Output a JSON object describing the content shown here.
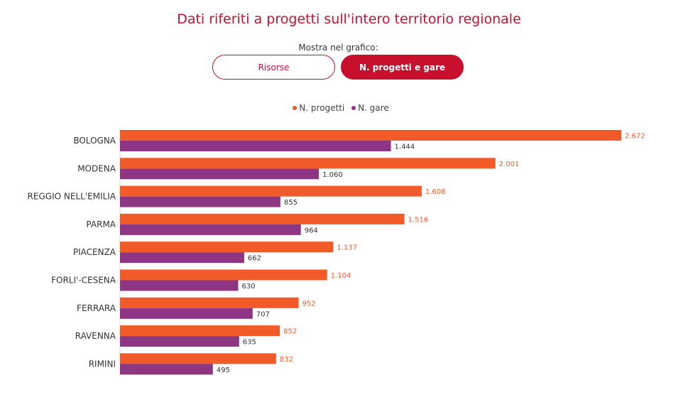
{
  "title": "Dati riferiti a progetti sull'intero territorio regionale",
  "toggle": {
    "label": "Mostra nel grafico:",
    "options": [
      "Risorse",
      "N. progetti e gare"
    ],
    "selected": "N. progetti e gare"
  },
  "colors": {
    "accent": "#c8102e",
    "progetti": "#f15a29",
    "gare": "#8e3583"
  },
  "chart_data": {
    "type": "bar",
    "orientation": "horizontal",
    "categories": [
      "BOLOGNA",
      "MODENA",
      "REGGIO NELL'EMILIA",
      "PARMA",
      "PIACENZA",
      "FORLI'-CESENA",
      "FERRARA",
      "RAVENNA",
      "RIMINI"
    ],
    "series": [
      {
        "name": "N. progetti",
        "values": [
          2672,
          2001,
          1608,
          1516,
          1137,
          1104,
          952,
          852,
          832
        ],
        "labels": [
          "2.672",
          "2.001",
          "1.608",
          "1.516",
          "1.137",
          "1.104",
          "952",
          "852",
          "832"
        ]
      },
      {
        "name": "N. gare",
        "values": [
          1444,
          1060,
          855,
          964,
          662,
          630,
          707,
          635,
          495
        ],
        "labels": [
          "1.444",
          "1.060",
          "855",
          "964",
          "662",
          "630",
          "707",
          "635",
          "495"
        ]
      }
    ],
    "xlim": [
      0,
      2672
    ],
    "grid": false,
    "legend_position": "top-center"
  }
}
